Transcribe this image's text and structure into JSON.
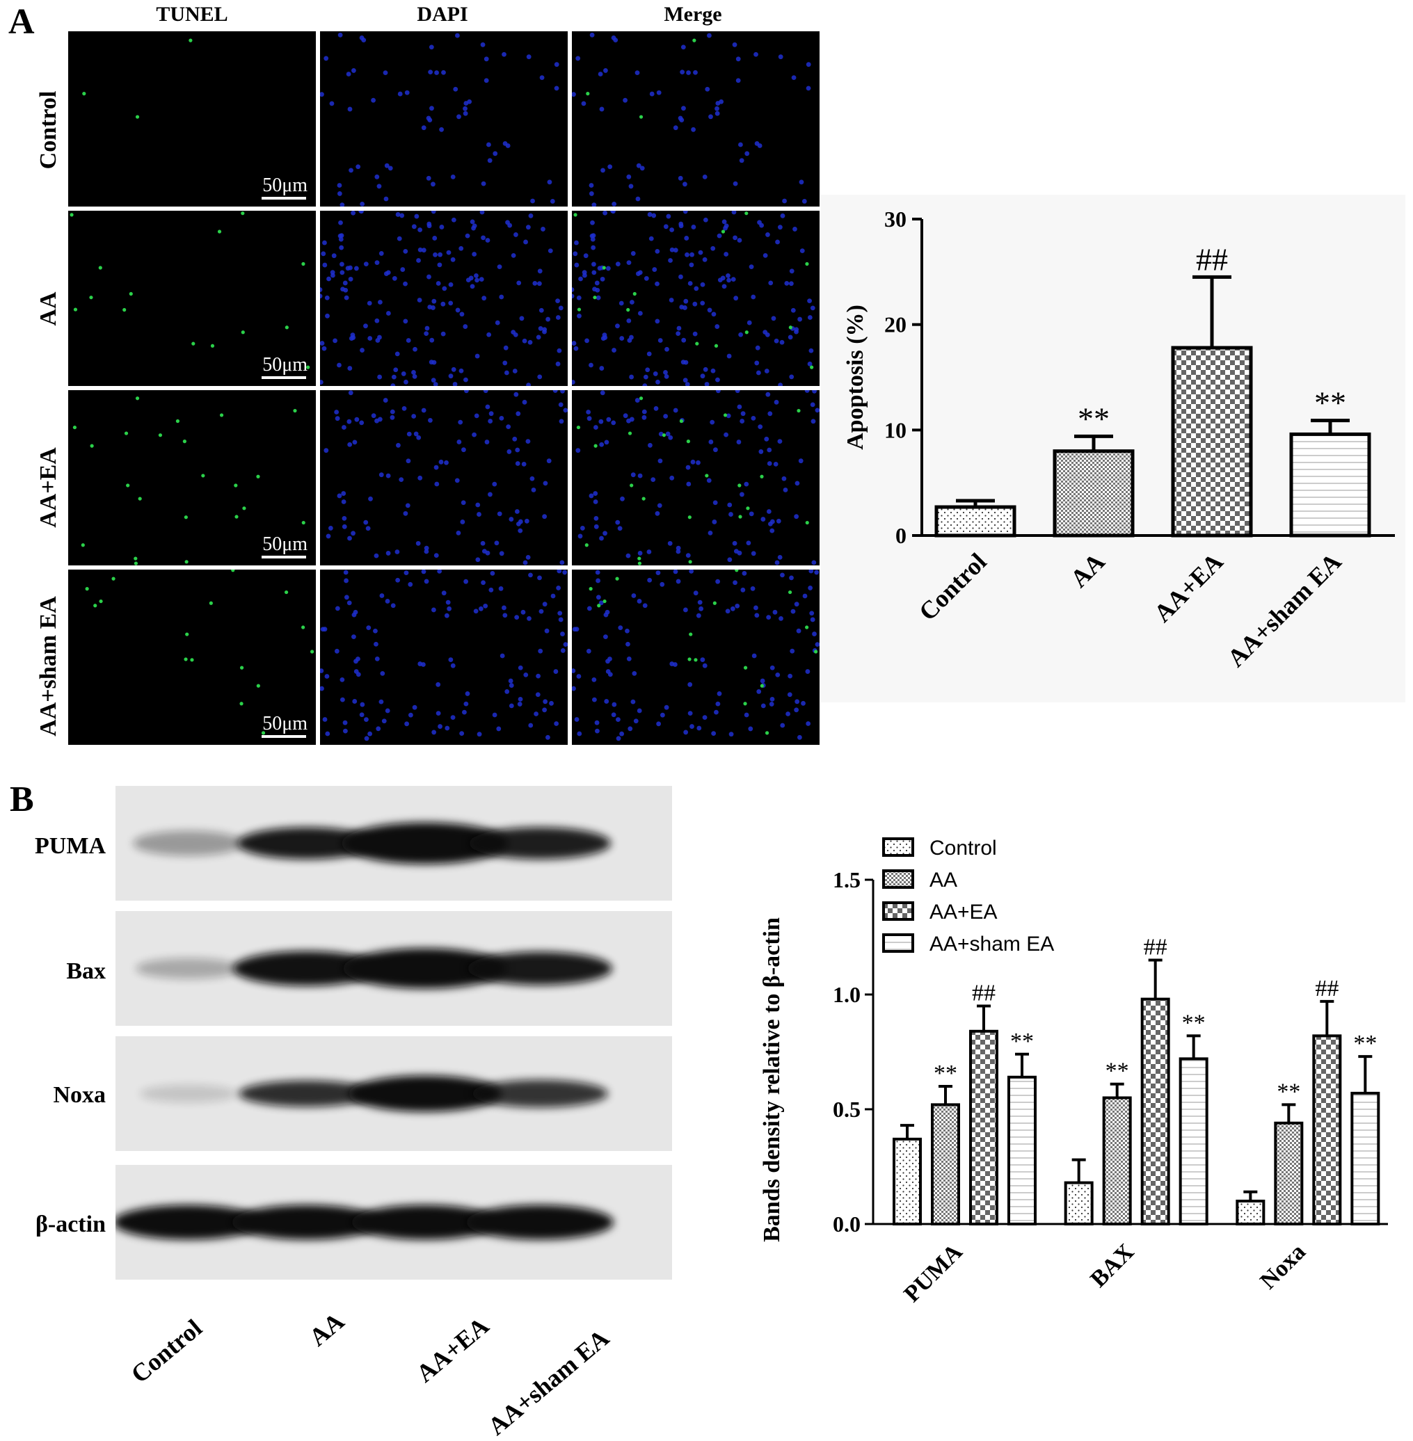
{
  "panel_a": {
    "letter": "A",
    "column_headers": [
      "TUNEL",
      "DAPI",
      "Merge"
    ],
    "row_labels": [
      "Control",
      "AA",
      "AA+EA",
      "AA+sham EA"
    ],
    "scale_bar": "50μm"
  },
  "panel_b": {
    "letter": "B",
    "blot_rows": [
      "PUMA",
      "Bax",
      "Noxa",
      "β-actin"
    ],
    "lane_labels": [
      "Control",
      "AA",
      "AA+EA",
      "AA+sham EA"
    ]
  },
  "colors": {
    "tunel_signal": "#2bd14a",
    "dapi_signal": "#1f2fd0",
    "tile_background": "#000000"
  },
  "chart_data": [
    {
      "type": "bar",
      "title": "",
      "ylabel": "Apoptosis (%)",
      "xlabel": "",
      "categories": [
        "Control",
        "AA",
        "AA+EA",
        "AA+sham EA"
      ],
      "values": [
        2.7,
        8.0,
        17.8,
        9.6
      ],
      "errors": [
        0.6,
        1.4,
        6.7,
        1.3
      ],
      "annotations": [
        "",
        "**",
        "##",
        "**"
      ],
      "ylim": [
        0,
        30
      ],
      "yticks": [
        "0",
        "10",
        "20",
        "30"
      ],
      "patterns": [
        "dots",
        "fine-checker",
        "checker",
        "hlines"
      ]
    },
    {
      "type": "bar",
      "title": "",
      "ylabel": "Bands density relative to β-actin",
      "xlabel": "",
      "categories": [
        "PUMA",
        "BAX",
        "Noxa"
      ],
      "series": [
        {
          "name": "Control",
          "values": [
            0.37,
            0.18,
            0.1
          ],
          "errors": [
            0.06,
            0.1,
            0.04
          ],
          "annotations": [
            "",
            "",
            ""
          ],
          "pattern": "dots"
        },
        {
          "name": "AA",
          "values": [
            0.52,
            0.55,
            0.44
          ],
          "errors": [
            0.08,
            0.06,
            0.08
          ],
          "annotations": [
            "**",
            "**",
            "**"
          ],
          "pattern": "fine-checker"
        },
        {
          "name": "AA+EA",
          "values": [
            0.84,
            0.98,
            0.82
          ],
          "errors": [
            0.11,
            0.17,
            0.15
          ],
          "annotations": [
            "##",
            "##",
            "##"
          ],
          "pattern": "checker"
        },
        {
          "name": "AA+sham EA",
          "values": [
            0.64,
            0.72,
            0.57
          ],
          "errors": [
            0.1,
            0.1,
            0.16
          ],
          "annotations": [
            "**",
            "**",
            "**"
          ],
          "pattern": "hlines"
        }
      ],
      "ylim": [
        0,
        1.5
      ],
      "yticks": [
        "0.0",
        "0.5",
        "1.0",
        "1.5"
      ],
      "legend": "top-left"
    }
  ]
}
